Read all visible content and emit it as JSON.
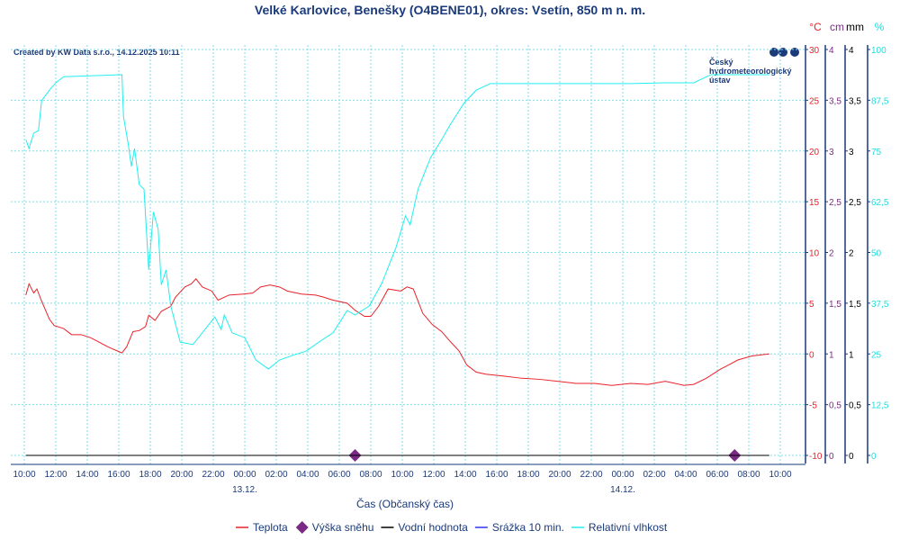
{
  "chart_data": {
    "type": "line",
    "title": "Velké Karlovice, Benešky (O4BENE01), okres: Vsetín, 850 m n. m.",
    "credit": "Created by KW Data s.r.o., 14.12.2025 10:11",
    "logo_text": [
      "Český",
      "hydrometeorologický",
      "ústav"
    ],
    "xlabel": "Čas (Občanský čas)",
    "x_unit": "hours since 12.12. 10:00",
    "x_ticks": [
      "10:00",
      "12:00",
      "14:00",
      "16:00",
      "18:00",
      "20:00",
      "22:00",
      "00:00",
      "02:00",
      "04:00",
      "06:00",
      "08:00",
      "10:00",
      "12:00",
      "14:00",
      "16:00",
      "18:00",
      "20:00",
      "22:00",
      "00:00",
      "02:00",
      "04:00",
      "06:00",
      "08:00",
      "10:00"
    ],
    "date_labels": [
      {
        "label": "13.12.",
        "tick": 7
      },
      {
        "label": "14.12.",
        "tick": 19
      }
    ],
    "axes": [
      {
        "unit": "°C",
        "color": "#e8222a",
        "range": [
          -10,
          30
        ],
        "ticks": [
          "30",
          "25",
          "20",
          "15",
          "10",
          "5",
          "0",
          "-5",
          "-10"
        ]
      },
      {
        "unit": "cm",
        "color": "#7a2a85",
        "range": [
          0,
          4
        ],
        "ticks": [
          "4",
          "3,5",
          "3",
          "2,5",
          "2",
          "1,5",
          "1",
          "0,5",
          "0"
        ]
      },
      {
        "unit": "mm",
        "color": "#000000",
        "range": [
          0,
          4
        ],
        "ticks": [
          "4",
          "3,5",
          "3",
          "2,5",
          "2",
          "1,5",
          "1",
          "0,5",
          "0"
        ]
      },
      {
        "unit": "%",
        "color": "#22dddd",
        "range": [
          0,
          100
        ],
        "ticks": [
          "100",
          "87,5",
          "75",
          "62,5",
          "50",
          "37,5",
          "25",
          "12,5",
          "0"
        ]
      }
    ],
    "series": [
      {
        "name": "Teplota",
        "axis": 0,
        "color": "#e8222a",
        "points": [
          [
            0.1,
            5.8
          ],
          [
            0.3,
            6.9
          ],
          [
            0.6,
            6.0
          ],
          [
            0.8,
            6.4
          ],
          [
            1.1,
            5.2
          ],
          [
            1.6,
            3.4
          ],
          [
            1.9,
            2.8
          ],
          [
            2.5,
            2.5
          ],
          [
            3.0,
            1.9
          ],
          [
            3.6,
            1.9
          ],
          [
            4.2,
            1.6
          ],
          [
            4.7,
            1.2
          ],
          [
            5.3,
            0.7
          ],
          [
            5.9,
            0.3
          ],
          [
            6.2,
            0.1
          ],
          [
            6.5,
            0.7
          ],
          [
            6.9,
            2.2
          ],
          [
            7.3,
            2.3
          ],
          [
            7.7,
            2.7
          ],
          [
            7.9,
            3.8
          ],
          [
            8.3,
            3.3
          ],
          [
            8.7,
            4.2
          ],
          [
            9.3,
            4.7
          ],
          [
            9.6,
            5.6
          ],
          [
            10.2,
            6.6
          ],
          [
            10.6,
            6.9
          ],
          [
            10.9,
            7.4
          ],
          [
            11.3,
            6.6
          ],
          [
            11.9,
            6.2
          ],
          [
            12.3,
            5.3
          ],
          [
            13.0,
            5.8
          ],
          [
            13.9,
            5.9
          ],
          [
            14.5,
            6.0
          ],
          [
            15.0,
            6.6
          ],
          [
            15.6,
            6.8
          ],
          [
            16.2,
            6.6
          ],
          [
            16.7,
            6.2
          ],
          [
            17.6,
            5.9
          ],
          [
            18.5,
            5.8
          ],
          [
            19.0,
            5.6
          ],
          [
            19.6,
            5.3
          ],
          [
            20.5,
            5.0
          ],
          [
            21.0,
            4.3
          ],
          [
            21.6,
            3.7
          ],
          [
            22.0,
            3.7
          ],
          [
            22.5,
            4.7
          ],
          [
            23.1,
            6.4
          ],
          [
            23.9,
            6.2
          ],
          [
            24.3,
            6.6
          ],
          [
            24.7,
            6.4
          ],
          [
            25.3,
            4.0
          ],
          [
            25.9,
            2.9
          ],
          [
            26.5,
            2.2
          ],
          [
            27.0,
            1.3
          ],
          [
            27.6,
            0.3
          ],
          [
            28.1,
            -1.1
          ],
          [
            28.7,
            -1.8
          ],
          [
            29.3,
            -2.0
          ],
          [
            30.5,
            -2.2
          ],
          [
            31.6,
            -2.4
          ],
          [
            32.7,
            -2.5
          ],
          [
            33.9,
            -2.7
          ],
          [
            35.0,
            -2.9
          ],
          [
            36.2,
            -2.9
          ],
          [
            37.3,
            -3.1
          ],
          [
            38.5,
            -2.9
          ],
          [
            39.6,
            -3.0
          ],
          [
            40.7,
            -2.7
          ],
          [
            41.9,
            -3.1
          ],
          [
            42.5,
            -3.0
          ],
          [
            43.3,
            -2.4
          ],
          [
            44.2,
            -1.5
          ],
          [
            44.7,
            -1.1
          ],
          [
            45.3,
            -0.6
          ],
          [
            46.2,
            -0.2
          ],
          [
            47.3,
            0.0
          ]
        ]
      },
      {
        "name": "Výška sněhu",
        "axis": 1,
        "color": "#7a2a85",
        "marker": "diamond",
        "points": [
          [
            21.0,
            0
          ],
          [
            45.1,
            0
          ]
        ]
      },
      {
        "name": "Vodní hodnota",
        "axis": 2,
        "color": "#000000",
        "points": [
          [
            0.1,
            0
          ],
          [
            47.3,
            0
          ]
        ]
      },
      {
        "name": "Srážka 10 min.",
        "axis": 2,
        "color": "#3333ee",
        "points": []
      },
      {
        "name": "Relativní vlhkost",
        "axis": 3,
        "color": "#22eeee",
        "points": [
          [
            0.1,
            77.8
          ],
          [
            0.3,
            75.6
          ],
          [
            0.6,
            79.4
          ],
          [
            0.9,
            80
          ],
          [
            1.1,
            87.4
          ],
          [
            1.6,
            90
          ],
          [
            2.0,
            91.8
          ],
          [
            2.5,
            93.3
          ],
          [
            6.2,
            93.8
          ],
          [
            6.3,
            83.4
          ],
          [
            6.6,
            76.7
          ],
          [
            6.8,
            71.2
          ],
          [
            7.0,
            75.6
          ],
          [
            7.3,
            66.7
          ],
          [
            7.6,
            65.6
          ],
          [
            7.9,
            45.7
          ],
          [
            8.2,
            60
          ],
          [
            8.5,
            55.7
          ],
          [
            8.7,
            42
          ],
          [
            9.0,
            45.7
          ],
          [
            9.3,
            36.8
          ],
          [
            9.9,
            27.9
          ],
          [
            10.7,
            27.3
          ],
          [
            11.3,
            30.2
          ],
          [
            12.1,
            34.1
          ],
          [
            12.5,
            31
          ],
          [
            12.7,
            34.6
          ],
          [
            13.2,
            30.2
          ],
          [
            14.0,
            29
          ],
          [
            14.7,
            23.5
          ],
          [
            15.5,
            21.3
          ],
          [
            16.2,
            23.5
          ],
          [
            17.0,
            24.6
          ],
          [
            17.9,
            25.7
          ],
          [
            18.7,
            27.9
          ],
          [
            19.6,
            30.2
          ],
          [
            20.5,
            35.7
          ],
          [
            21.0,
            34.6
          ],
          [
            21.9,
            36.8
          ],
          [
            22.7,
            42.4
          ],
          [
            23.6,
            51.2
          ],
          [
            24.2,
            59
          ],
          [
            24.5,
            56.8
          ],
          [
            25.0,
            65.6
          ],
          [
            25.8,
            73.4
          ],
          [
            26.5,
            77.8
          ],
          [
            27.0,
            81.2
          ],
          [
            27.9,
            86.7
          ],
          [
            28.7,
            90
          ],
          [
            29.6,
            91.6
          ],
          [
            32.7,
            91.6
          ],
          [
            38.5,
            91.6
          ],
          [
            40.7,
            91.8
          ],
          [
            42.5,
            91.8
          ],
          [
            43.6,
            93.8
          ],
          [
            47.3,
            93.8
          ]
        ]
      }
    ],
    "legend": "bottom"
  }
}
